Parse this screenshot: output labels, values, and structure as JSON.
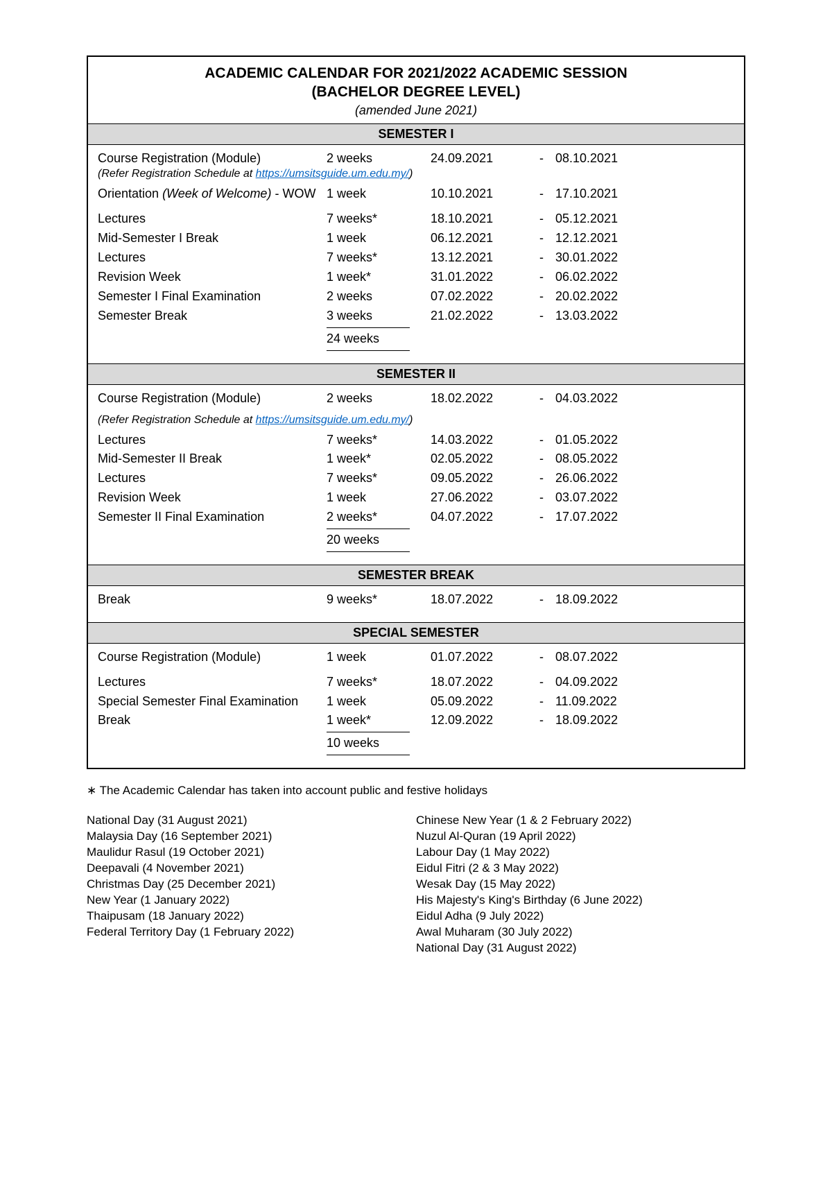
{
  "title": {
    "line1": "ACADEMIC CALENDAR FOR 2021/2022 ACADEMIC SESSION",
    "line2": "(BACHELOR DEGREE LEVEL)",
    "amended": "(amended June 2021)"
  },
  "refer_note_prefix": "(Refer Registration Schedule at ",
  "refer_note_url": "https://umsitsguide.um.edu.my/",
  "refer_note_suffix": ")",
  "sections": {
    "s1": {
      "header": "SEMESTER I",
      "total": "24 weeks",
      "rows": [
        {
          "desc": "Course Registration (Module)",
          "dur": "2 weeks",
          "start": "24.09.2021",
          "end": "08.10.2021",
          "has_refer": true,
          "spaced": false
        },
        {
          "desc": "Orientation ",
          "desc_italic": "(Week of Welcome)",
          "desc_suffix": " - WOW",
          "dur": "1 week",
          "start": "10.10.2021",
          "end": "17.10.2021",
          "spaced": true
        },
        {
          "desc": "Lectures",
          "dur": "7 weeks*",
          "start": "18.10.2021",
          "end": "05.12.2021"
        },
        {
          "desc": "Mid-Semester I Break",
          "dur": "1 week",
          "start": "06.12.2021",
          "end": "12.12.2021"
        },
        {
          "desc": "Lectures",
          "dur": "7 weeks*",
          "start": "13.12.2021",
          "end": "30.01.2022"
        },
        {
          "desc": "Revision Week",
          "dur": "1 week*",
          "start": "31.01.2022",
          "end": "06.02.2022"
        },
        {
          "desc": "Semester I Final Examination",
          "dur": "2 weeks",
          "start": "07.02.2022",
          "end": "20.02.2022"
        },
        {
          "desc": "Semester Break",
          "dur": "3 weeks",
          "start": "21.02.2022",
          "end": "13.03.2022"
        }
      ]
    },
    "s2": {
      "header": "SEMESTER II",
      "total": "20 weeks",
      "rows": [
        {
          "desc": "Course Registration (Module)",
          "dur": "2 weeks",
          "start": "18.02.2022",
          "end": "04.03.2022",
          "has_refer": true,
          "spaced": true
        },
        {
          "desc": "Lectures",
          "dur": "7 weeks*",
          "start": "14.03.2022",
          "end": "01.05.2022"
        },
        {
          "desc": "Mid-Semester II Break",
          "dur": "1 week*",
          "start": "02.05.2022",
          "end": "08.05.2022"
        },
        {
          "desc": "Lectures",
          "dur": "7 weeks*",
          "start": "09.05.2022",
          "end": "26.06.2022"
        },
        {
          "desc": "Revision Week",
          "dur": "1 week",
          "start": "27.06.2022",
          "end": "03.07.2022"
        },
        {
          "desc": "Semester II Final Examination",
          "dur": "2 weeks*",
          "start": "04.07.2022",
          "end": "17.07.2022"
        }
      ]
    },
    "sb": {
      "header": "SEMESTER BREAK",
      "rows": [
        {
          "desc": "Break",
          "dur": "9 weeks*",
          "start": "18.07.2022",
          "end": "18.09.2022"
        }
      ]
    },
    "ss": {
      "header": "SPECIAL SEMESTER",
      "total": "10 weeks",
      "rows": [
        {
          "desc": "Course Registration (Module)",
          "dur": "1 week",
          "start": "01.07.2022",
          "end": "08.07.2022",
          "spaced": true
        },
        {
          "desc": "Lectures",
          "dur": "7 weeks*",
          "start": "18.07.2022",
          "end": "04.09.2022"
        },
        {
          "desc": "Special Semester Final Examination",
          "dur": "1 week",
          "start": "05.09.2022",
          "end": "11.09.2022"
        },
        {
          "desc": "Break",
          "dur": "1 week*",
          "start": "12.09.2022",
          "end": "18.09.2022"
        }
      ]
    }
  },
  "footnote": "∗ The Academic Calendar has taken into account public and festive holidays",
  "holidays": {
    "left": [
      "National Day (31 August 2021)",
      "Malaysia Day (16 September 2021)",
      "Maulidur Rasul (19 October 2021)",
      "Deepavali (4 November 2021)",
      "Christmas Day (25 December 2021)",
      "New Year (1 January 2022)",
      "Thaipusam (18 January 2022)",
      "Federal Territory Day (1 February 2022)"
    ],
    "right": [
      "Chinese New Year (1 & 2 February 2022)",
      "Nuzul Al-Quran (19 April 2022)",
      "Labour Day (1 May 2022)",
      "Eidul Fitri (2 & 3 May 2022)",
      "Wesak Day (15 May 2022)",
      "His Majesty's King's Birthday (6 June 2022)",
      "Eidul Adha (9 July 2022)",
      "Awal Muharam (30 July 2022)",
      "National Day (31 August 2022)"
    ]
  }
}
